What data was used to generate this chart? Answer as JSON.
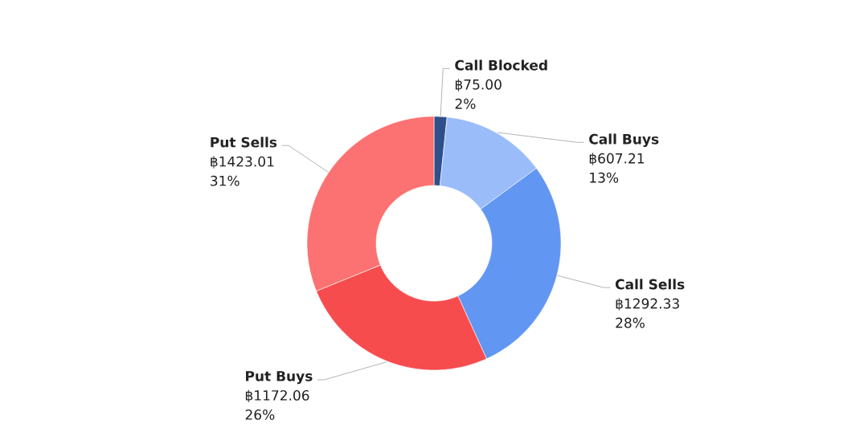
{
  "chart_data": {
    "type": "donut",
    "categories": [
      "Call Blocked",
      "Call Buys",
      "Call Sells",
      "Put Buys",
      "Put Sells"
    ],
    "values": [
      75.0,
      607.21,
      1292.33,
      1172.06,
      1423.01
    ],
    "colors": [
      "#2f4f8b",
      "#9abcf9",
      "#6197f2",
      "#f64c4e",
      "#fc7171"
    ],
    "value_labels": [
      "฿75.00",
      "฿607.21",
      "฿1292.33",
      "฿1172.06",
      "฿1423.01"
    ],
    "annotations": [
      "2%",
      "13%",
      "28%",
      "26%",
      "31%"
    ]
  }
}
